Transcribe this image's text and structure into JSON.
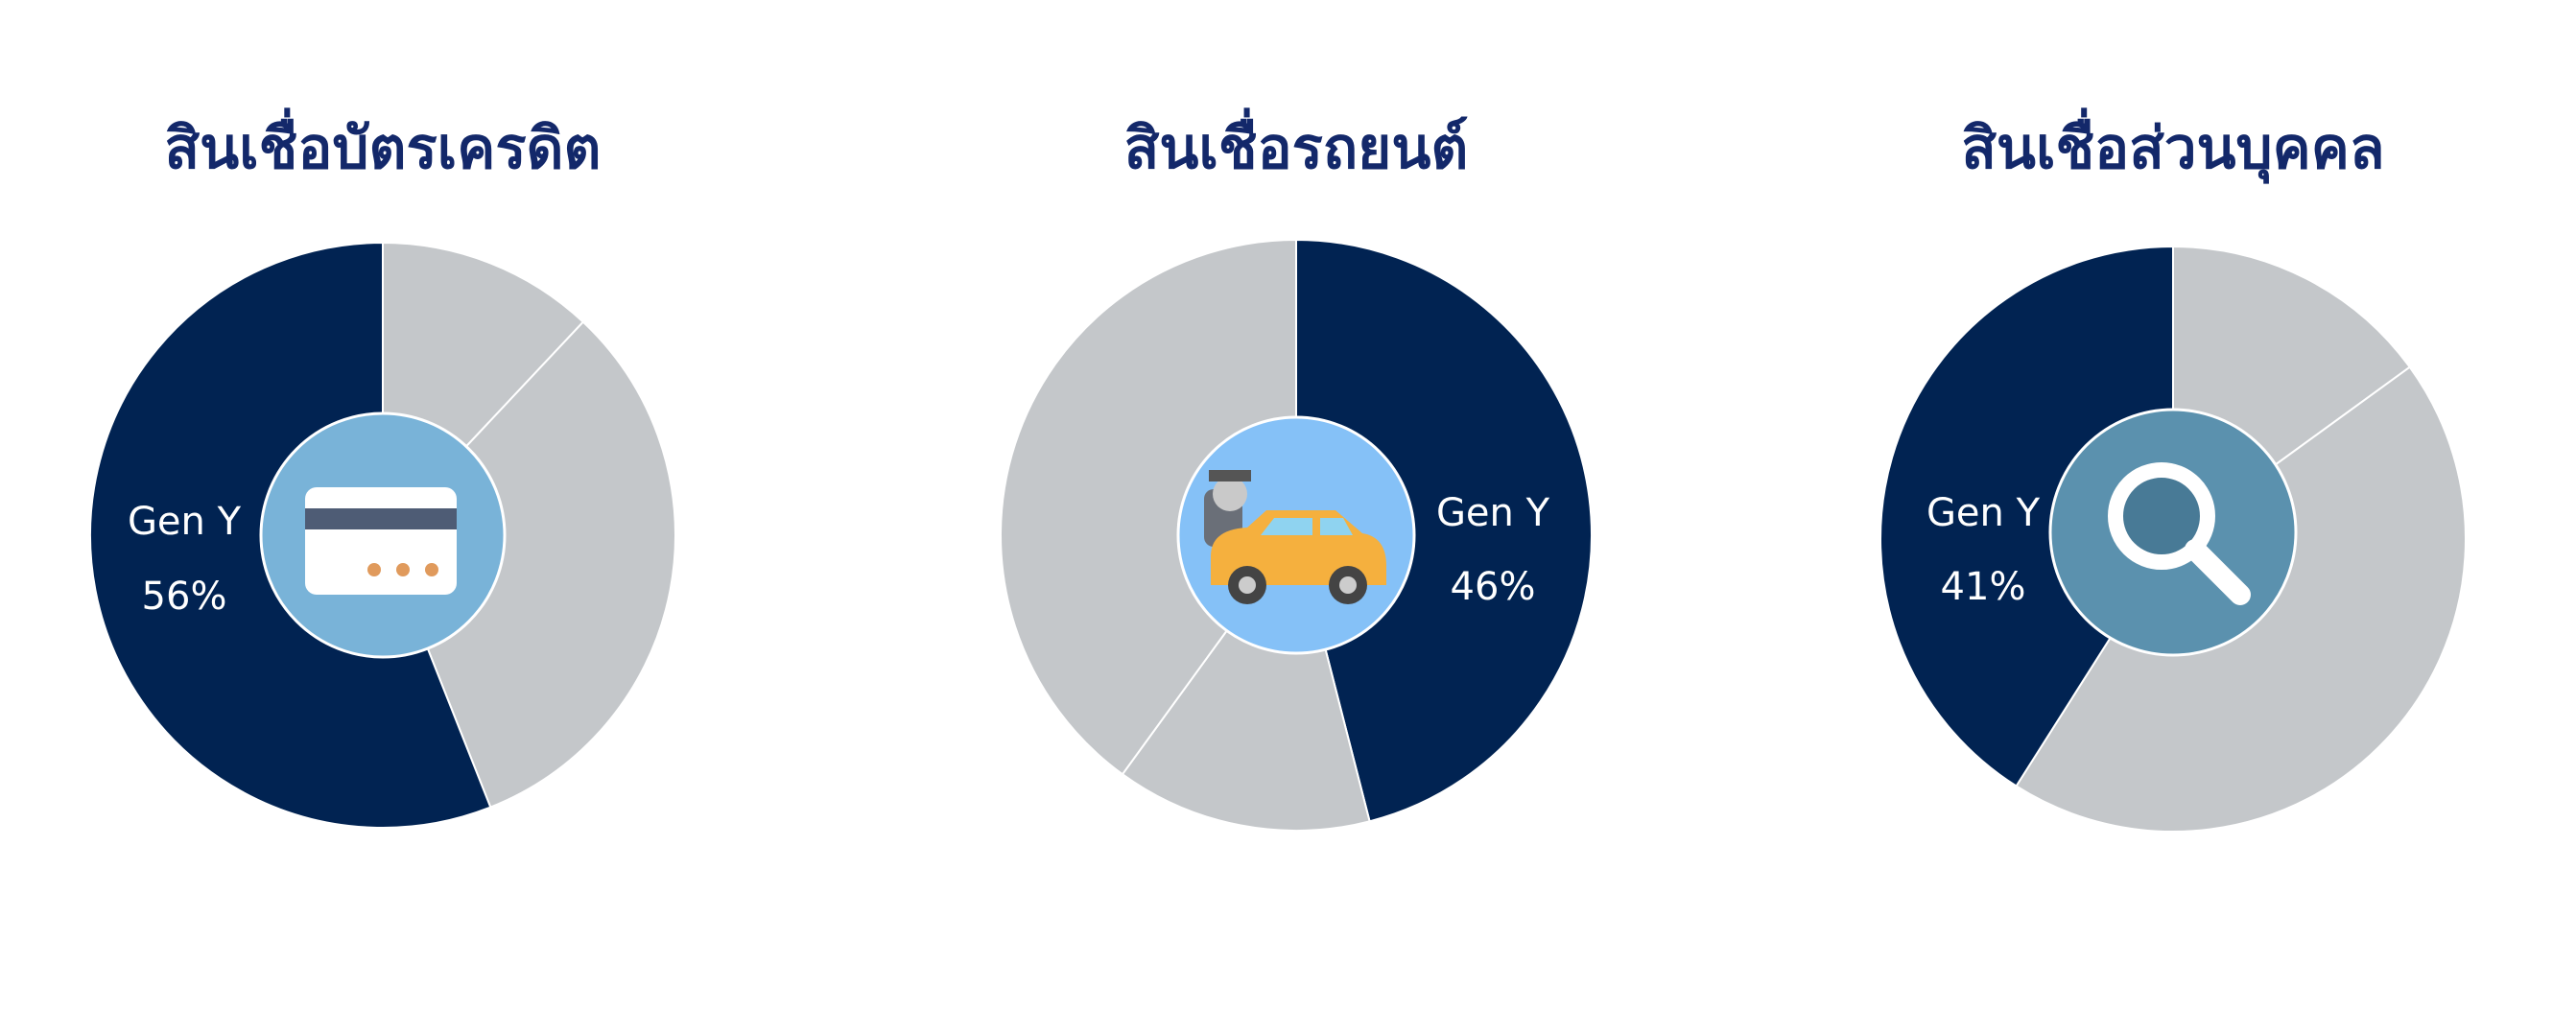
{
  "chart_data": [
    {
      "type": "pie",
      "title": "สินเชื่อบัตรเครดิต",
      "categories": [
        null,
        null,
        "Gen Y"
      ],
      "values": [
        12,
        32,
        56
      ],
      "value_labels": [
        null,
        null,
        "56%"
      ],
      "colors": [
        "#c4c7ca",
        "#c4c7ca",
        "#012352"
      ]
    },
    {
      "type": "pie",
      "title": "สินเชื่อรถยนต์",
      "categories": [
        "Gen Y",
        null,
        null
      ],
      "values": [
        46,
        14,
        40
      ],
      "value_labels": [
        "46%",
        null,
        null
      ],
      "colors": [
        "#012352",
        "#c4c7ca",
        "#c4c7ca"
      ]
    },
    {
      "type": "pie",
      "title": "สินเชื่อส่วนบุคคล",
      "categories": [
        null,
        null,
        "Gen Y"
      ],
      "values": [
        15,
        44,
        41
      ],
      "value_labels": [
        null,
        null,
        "41%"
      ],
      "colors": [
        "#c4c7ca",
        "#c4c7ca",
        "#012352"
      ]
    }
  ]
}
